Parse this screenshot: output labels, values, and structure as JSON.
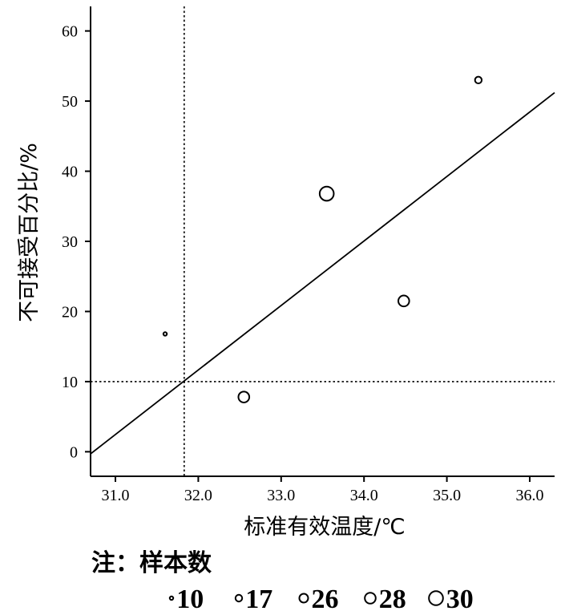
{
  "chart_data": {
    "type": "scatter",
    "xlabel": "标准有效温度/℃",
    "ylabel": "不可接受百分比/%",
    "xlim": [
      30.7,
      36.3
    ],
    "ylim": [
      -3.5,
      63.5
    ],
    "x_ticks": [
      31.0,
      32.0,
      33.0,
      34.0,
      35.0,
      36.0
    ],
    "x_tick_labels": [
      "31.0",
      "32.0",
      "33.0",
      "34.0",
      "35.0",
      "36.0"
    ],
    "y_ticks": [
      0,
      10,
      20,
      30,
      40,
      50,
      60
    ],
    "y_tick_labels": [
      "0",
      "10",
      "20",
      "30",
      "40",
      "50",
      "60"
    ],
    "points": [
      {
        "x": 31.6,
        "y": 16.8,
        "n": 10
      },
      {
        "x": 32.55,
        "y": 7.8,
        "n": 28
      },
      {
        "x": 33.55,
        "y": 36.8,
        "n": 30
      },
      {
        "x": 34.48,
        "y": 21.5,
        "n": 28
      },
      {
        "x": 35.38,
        "y": 53.0,
        "n": 17
      }
    ],
    "fit_line": {
      "x": [
        30.7,
        36.3
      ],
      "y": [
        -0.3,
        51.2
      ]
    },
    "reference_lines": {
      "x": 31.83,
      "y": 10
    },
    "note": {
      "label": "注：样本数",
      "sizes": [
        10,
        17,
        26,
        28,
        30
      ],
      "size_labels": [
        "10",
        "17",
        "26",
        "28",
        "30"
      ]
    }
  }
}
